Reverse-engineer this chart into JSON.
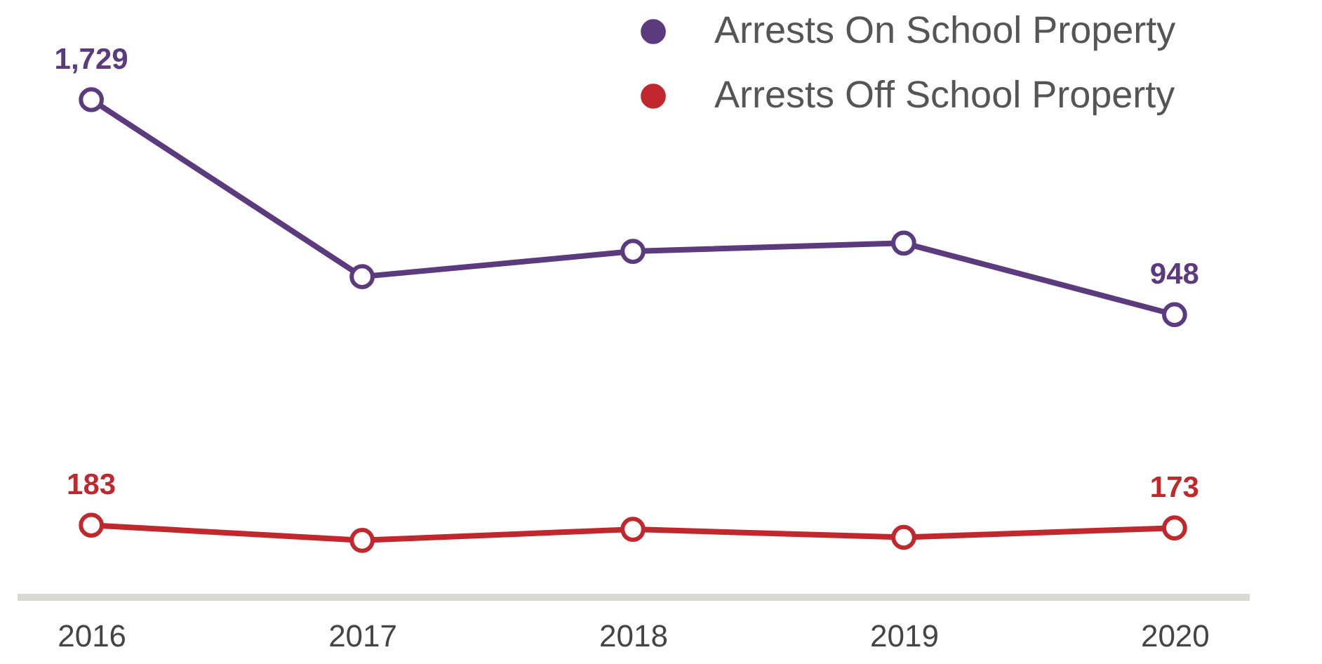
{
  "chart_data": {
    "type": "line",
    "categories": [
      "2016",
      "2017",
      "2018",
      "2019",
      "2020"
    ],
    "series": [
      {
        "name": "Arrests On School Property",
        "color": "#5c3a7e",
        "values": [
          1729,
          1086,
          1178,
          1208,
          948
        ],
        "value_labels": [
          "1,729",
          null,
          null,
          null,
          "948"
        ]
      },
      {
        "name": "Arrests Off School Property",
        "color": "#c0282d",
        "values": [
          183,
          128,
          168,
          139,
          173
        ],
        "value_labels": [
          "183",
          null,
          null,
          null,
          "173"
        ]
      }
    ],
    "marker": "circle",
    "line_style": "solid",
    "legend": "top right",
    "tick_labels": "x"
  }
}
